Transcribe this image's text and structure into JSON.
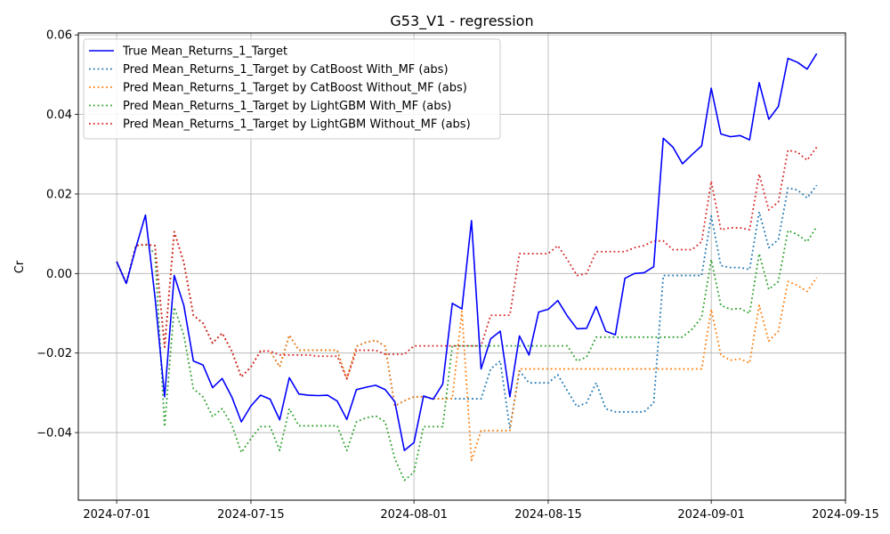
{
  "chart_data": {
    "type": "line",
    "title": "G53_V1 - regression",
    "xlabel": "",
    "ylabel": "Cr",
    "grid": true,
    "legend_position": "top-left",
    "xlim": [
      "2024-06-27",
      "2024-09-15"
    ],
    "ylim": [
      -0.057,
      0.0605
    ],
    "x_ticks": [
      "2024-07-01",
      "2024-07-15",
      "2024-08-01",
      "2024-08-15",
      "2024-09-01",
      "2024-09-15"
    ],
    "y_ticks": [
      -0.04,
      -0.02,
      0.0,
      0.02,
      0.04,
      0.06
    ],
    "y_tick_labels": [
      "−0.04",
      "−0.02",
      "0.00",
      "0.02",
      "0.04",
      "0.06"
    ],
    "x": [
      "2024-07-01",
      "2024-07-02",
      "2024-07-03",
      "2024-07-04",
      "2024-07-05",
      "2024-07-06",
      "2024-07-07",
      "2024-07-08",
      "2024-07-09",
      "2024-07-10",
      "2024-07-11",
      "2024-07-12",
      "2024-07-13",
      "2024-07-14",
      "2024-07-15",
      "2024-07-16",
      "2024-07-17",
      "2024-07-18",
      "2024-07-19",
      "2024-07-20",
      "2024-07-21",
      "2024-07-22",
      "2024-07-23",
      "2024-07-24",
      "2024-07-25",
      "2024-07-26",
      "2024-07-27",
      "2024-07-28",
      "2024-07-29",
      "2024-07-30",
      "2024-07-31",
      "2024-08-01",
      "2024-08-02",
      "2024-08-03",
      "2024-08-04",
      "2024-08-05",
      "2024-08-06",
      "2024-08-07",
      "2024-08-08",
      "2024-08-09",
      "2024-08-10",
      "2024-08-11",
      "2024-08-12",
      "2024-08-13",
      "2024-08-14",
      "2024-08-15",
      "2024-08-16",
      "2024-08-17",
      "2024-08-18",
      "2024-08-19",
      "2024-08-20",
      "2024-08-21",
      "2024-08-22",
      "2024-08-23",
      "2024-08-24",
      "2024-08-25",
      "2024-08-26",
      "2024-08-27",
      "2024-08-28",
      "2024-08-29",
      "2024-08-30",
      "2024-08-31",
      "2024-09-01",
      "2024-09-02",
      "2024-09-03",
      "2024-09-04",
      "2024-09-05",
      "2024-09-06",
      "2024-09-07",
      "2024-09-08",
      "2024-09-09",
      "2024-09-10",
      "2024-09-11",
      "2024-09-12"
    ],
    "series": [
      {
        "name": "True Mean_Returns_1_Target",
        "color": "#0000ff",
        "style": "solid",
        "values": [
          0.003,
          -0.0025,
          0.0065,
          0.0147,
          -0.006,
          -0.031,
          -0.0005,
          -0.008,
          -0.022,
          -0.023,
          -0.0287,
          -0.0264,
          -0.031,
          -0.0373,
          -0.0333,
          -0.0306,
          -0.0316,
          -0.0368,
          -0.0262,
          -0.0303,
          -0.0306,
          -0.0307,
          -0.0306,
          -0.0321,
          -0.0367,
          -0.0292,
          -0.0286,
          -0.0281,
          -0.0292,
          -0.0322,
          -0.0445,
          -0.0425,
          -0.0308,
          -0.0316,
          -0.0278,
          -0.0075,
          -0.0089,
          0.0133,
          -0.024,
          -0.0164,
          -0.0145,
          -0.031,
          -0.0157,
          -0.0205,
          -0.0097,
          -0.009,
          -0.0068,
          -0.0107,
          -0.0139,
          -0.0138,
          -0.0083,
          -0.0145,
          -0.0154,
          -0.0012,
          0.0,
          0.0002,
          0.0017,
          0.034,
          0.0318,
          0.0276,
          0.0299,
          0.0321,
          0.0466,
          0.0351,
          0.0344,
          0.0347,
          0.0336,
          0.048,
          0.0388,
          0.042,
          0.0541,
          0.0531,
          0.0514,
          0.0553
        ]
      },
      {
        "name": "Pred Mean_Returns_1_Target by CatBoost With_MF (abs)",
        "color": "#1f77b4",
        "style": "dotted",
        "values": [
          0.003,
          -0.0025,
          0.007,
          0.0073,
          0.007,
          -0.0185,
          0.0105,
          0.0028,
          -0.0105,
          -0.0125,
          -0.0175,
          -0.015,
          -0.0195,
          -0.026,
          -0.0235,
          -0.0195,
          -0.0195,
          -0.0235,
          -0.0155,
          -0.0193,
          -0.0193,
          -0.0193,
          -0.0193,
          -0.0193,
          -0.0265,
          -0.0183,
          -0.0173,
          -0.0168,
          -0.0183,
          -0.0333,
          -0.032,
          -0.031,
          -0.031,
          -0.0315,
          -0.0315,
          -0.0315,
          -0.0315,
          -0.0315,
          -0.0315,
          -0.024,
          -0.022,
          -0.039,
          -0.0245,
          -0.0275,
          -0.0275,
          -0.0275,
          -0.0255,
          -0.0295,
          -0.0335,
          -0.0325,
          -0.0275,
          -0.034,
          -0.0348,
          -0.0348,
          -0.0348,
          -0.0348,
          -0.0325,
          -0.0005,
          -0.0005,
          -0.0005,
          -0.0005,
          -0.0005,
          0.0145,
          0.002,
          0.0015,
          0.0015,
          0.001,
          0.0155,
          0.0065,
          0.0085,
          0.0215,
          0.021,
          0.019,
          0.0222
        ]
      },
      {
        "name": "Pred Mean_Returns_1_Target by CatBoost Without_MF (abs)",
        "color": "#ff7f0e",
        "style": "dotted",
        "values": [
          0.003,
          -0.0025,
          0.007,
          0.0073,
          0.007,
          -0.0185,
          0.0105,
          0.0028,
          -0.0105,
          -0.0125,
          -0.0175,
          -0.015,
          -0.0195,
          -0.026,
          -0.0235,
          -0.0195,
          -0.0195,
          -0.0235,
          -0.0155,
          -0.0193,
          -0.0193,
          -0.0193,
          -0.0193,
          -0.0193,
          -0.0265,
          -0.0183,
          -0.0173,
          -0.0168,
          -0.0183,
          -0.0333,
          -0.032,
          -0.031,
          -0.031,
          -0.0315,
          -0.0315,
          -0.0315,
          -0.0095,
          -0.047,
          -0.0395,
          -0.0395,
          -0.0395,
          -0.0395,
          -0.024,
          -0.024,
          -0.024,
          -0.024,
          -0.024,
          -0.024,
          -0.024,
          -0.024,
          -0.024,
          -0.024,
          -0.024,
          -0.024,
          -0.024,
          -0.024,
          -0.024,
          -0.024,
          -0.024,
          -0.024,
          -0.024,
          -0.024,
          -0.009,
          -0.0205,
          -0.0218,
          -0.0215,
          -0.0225,
          -0.008,
          -0.017,
          -0.0145,
          -0.002,
          -0.003,
          -0.0045,
          -0.001
        ]
      },
      {
        "name": "Pred Mean_Returns_1_Target by LightGBM With_MF (abs)",
        "color": "#2ca02c",
        "style": "dotted",
        "values": [
          0.003,
          -0.0025,
          0.007,
          0.0073,
          0.005,
          -0.0385,
          -0.0085,
          -0.0155,
          -0.029,
          -0.031,
          -0.036,
          -0.034,
          -0.038,
          -0.045,
          -0.0415,
          -0.0385,
          -0.0385,
          -0.0445,
          -0.034,
          -0.0383,
          -0.0383,
          -0.0383,
          -0.0383,
          -0.0383,
          -0.0445,
          -0.0373,
          -0.0363,
          -0.0358,
          -0.0373,
          -0.0465,
          -0.052,
          -0.05,
          -0.0385,
          -0.0385,
          -0.0385,
          -0.0182,
          -0.0182,
          -0.0182,
          -0.0182,
          -0.0182,
          -0.0182,
          -0.0182,
          -0.0182,
          -0.0182,
          -0.0182,
          -0.0182,
          -0.0182,
          -0.0182,
          -0.022,
          -0.021,
          -0.016,
          -0.016,
          -0.016,
          -0.016,
          -0.016,
          -0.016,
          -0.016,
          -0.016,
          -0.016,
          -0.016,
          -0.014,
          -0.011,
          0.0035,
          -0.008,
          -0.009,
          -0.0088,
          -0.01,
          0.005,
          -0.004,
          -0.002,
          0.0108,
          0.0098,
          0.008,
          0.0118
        ]
      },
      {
        "name": "Pred Mean_Returns_1_Target by LightGBM Without_MF (abs)",
        "color": "#d62728",
        "style": "dotted",
        "values": [
          0.003,
          -0.0025,
          0.007,
          0.0073,
          0.007,
          -0.0185,
          0.0105,
          0.0028,
          -0.0105,
          -0.0125,
          -0.0175,
          -0.015,
          -0.0195,
          -0.026,
          -0.0235,
          -0.0195,
          -0.0195,
          -0.0205,
          -0.0205,
          -0.0205,
          -0.0205,
          -0.0208,
          -0.0208,
          -0.0208,
          -0.0265,
          -0.0193,
          -0.0193,
          -0.0193,
          -0.0203,
          -0.0203,
          -0.0203,
          -0.0182,
          -0.0182,
          -0.0182,
          -0.0182,
          -0.0182,
          -0.0182,
          -0.0182,
          -0.0182,
          -0.0105,
          -0.0105,
          -0.0105,
          0.005,
          0.005,
          0.005,
          0.005,
          0.007,
          0.0035,
          -0.0005,
          0.0,
          0.0055,
          0.0055,
          0.0055,
          0.0055,
          0.0065,
          0.007,
          0.0082,
          0.0082,
          0.006,
          0.006,
          0.006,
          0.008,
          0.0232,
          0.011,
          0.0115,
          0.0115,
          0.011,
          0.025,
          0.016,
          0.018,
          0.031,
          0.0305,
          0.0285,
          0.0318
        ]
      }
    ]
  }
}
